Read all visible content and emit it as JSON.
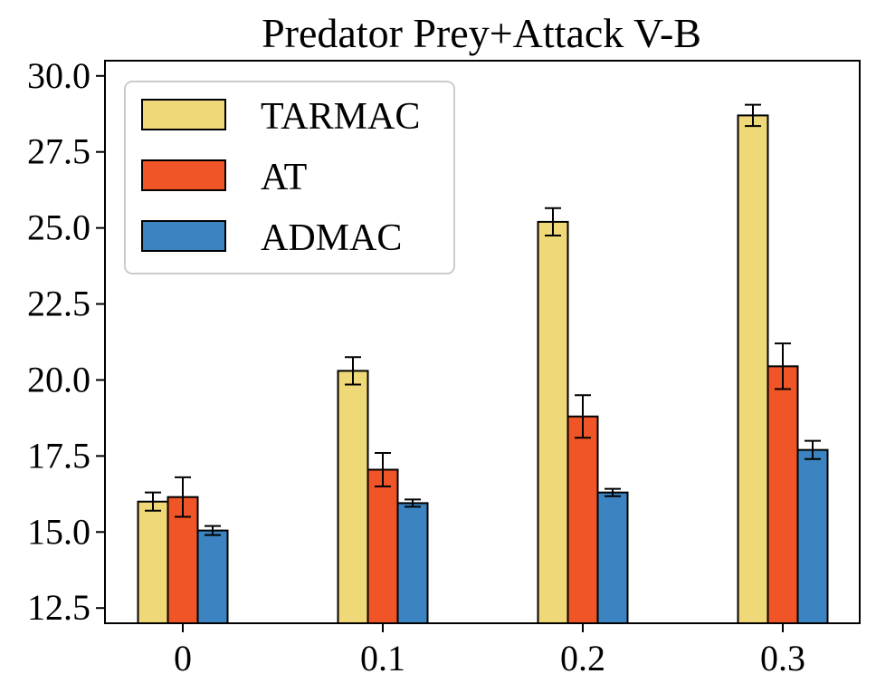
{
  "chart_data": {
    "type": "bar",
    "title": "Predator Prey+Attack V-B",
    "xlabel": "",
    "ylabel": "",
    "categories": [
      "0",
      "0.1",
      "0.2",
      "0.3"
    ],
    "ylim": [
      12.0,
      30.5
    ],
    "yticks": [
      "12.5",
      "15.0",
      "17.5",
      "20.0",
      "22.5",
      "25.0",
      "27.5",
      "30.0"
    ],
    "grid": false,
    "legend_position": "top-left",
    "series": [
      {
        "name": "TARMAC",
        "color": "#efd877",
        "values": [
          16.0,
          20.3,
          25.2,
          28.7
        ],
        "errors": [
          0.3,
          0.45,
          0.45,
          0.35
        ]
      },
      {
        "name": "AT",
        "color": "#f05528",
        "values": [
          16.15,
          17.05,
          18.8,
          20.45
        ],
        "errors": [
          0.65,
          0.55,
          0.7,
          0.75
        ]
      },
      {
        "name": "ADMAC",
        "color": "#3b84c1",
        "values": [
          15.05,
          15.95,
          16.3,
          17.7
        ],
        "errors": [
          0.15,
          0.12,
          0.12,
          0.3
        ]
      }
    ]
  }
}
